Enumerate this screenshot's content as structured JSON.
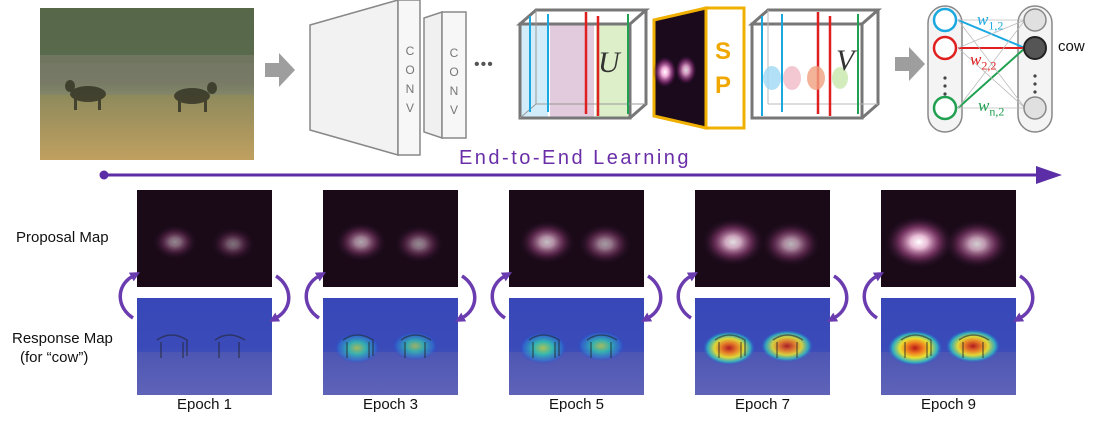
{
  "pipeline": {
    "conv_label_1": "CONV",
    "conv_label_2": "CONV",
    "ellipsis": "•••",
    "u_label": "U",
    "sp_label_1": "S",
    "sp_label_2": "P",
    "v_label": "V",
    "weights": [
      {
        "w": "w",
        "sub": "1,2",
        "color": "#1aa8e0"
      },
      {
        "w": "w",
        "sub": "2,2",
        "color": "#e02020"
      },
      {
        "w": "w",
        "sub": "n,2",
        "color": "#20a050"
      }
    ],
    "output_class": "cow",
    "node_colors": [
      "#1aa8e0",
      "#e02020",
      "#20a050"
    ]
  },
  "timeline": {
    "title": "End-to-End Learning",
    "color": "#5b2da6"
  },
  "rows": {
    "proposal_label": "Proposal Map",
    "response_label_1": "Response Map",
    "response_label_2": "(for “cow”)"
  },
  "epochs": [
    {
      "label": "Epoch 1",
      "intensity": 0.25,
      "heat": 0.0
    },
    {
      "label": "Epoch 3",
      "intensity": 0.45,
      "heat": 0.35
    },
    {
      "label": "Epoch 5",
      "intensity": 0.6,
      "heat": 0.5
    },
    {
      "label": "Epoch 7",
      "intensity": 0.8,
      "heat": 0.85
    },
    {
      "label": "Epoch 9",
      "intensity": 1.0,
      "heat": 1.0
    }
  ]
}
